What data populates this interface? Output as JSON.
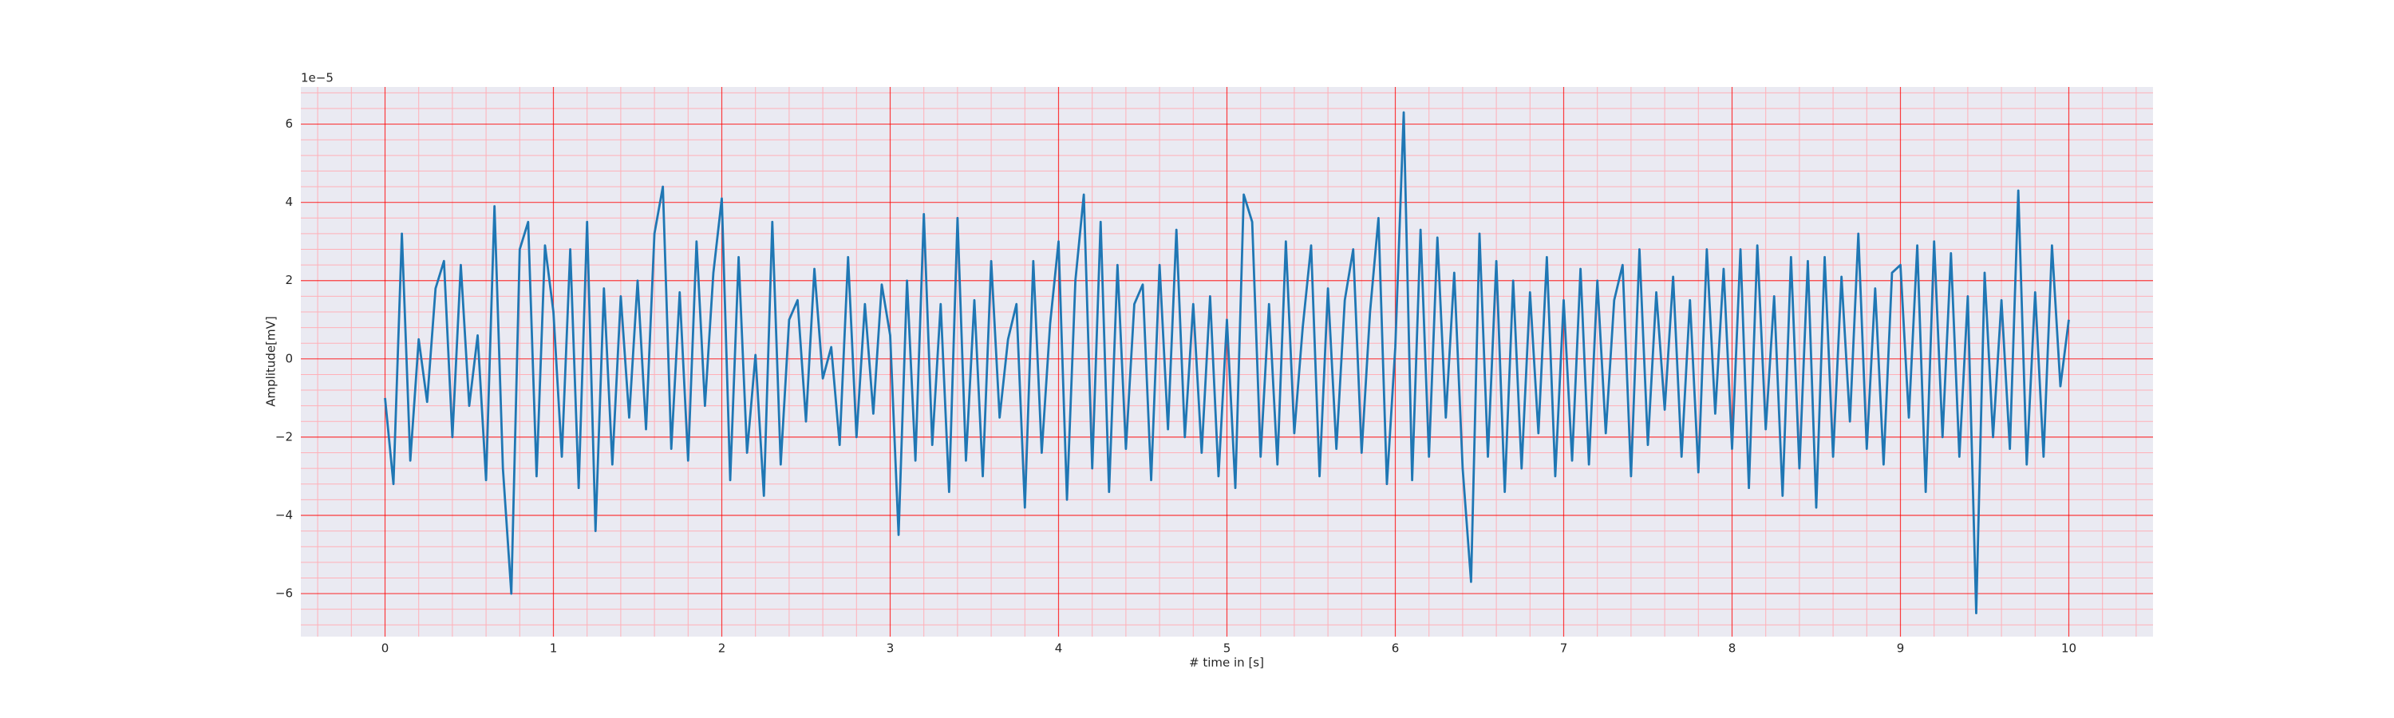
{
  "chart_data": {
    "type": "line",
    "xlabel": "# time in [s]",
    "ylabel": "Amplitude[mV]",
    "offset_text": "1e−5",
    "color": "#1f77b4",
    "grid": true,
    "grid_color": "#ff0000",
    "minor_grid_color": "#ffb0b8",
    "facecolor": "#eaeaf2",
    "xlim": [
      -0.5,
      10.5
    ],
    "ylim": [
      -7.1,
      6.95
    ],
    "xticks": [
      0,
      1,
      2,
      3,
      4,
      5,
      6,
      7,
      8,
      9,
      10
    ],
    "yticks": [
      {
        "value": -6,
        "label": "−6"
      },
      {
        "value": -4,
        "label": "−4"
      },
      {
        "value": -2,
        "label": "−2"
      },
      0,
      2,
      4,
      6
    ],
    "xminorticks": [
      -0.4,
      -0.2,
      0.2,
      0.4,
      0.6,
      0.8,
      1.2,
      1.4,
      1.6,
      1.8,
      2.2,
      2.4,
      2.6,
      2.8,
      3.2,
      3.4,
      3.6,
      3.8,
      4.2,
      4.4,
      4.6,
      4.8,
      5.2,
      5.4,
      5.6,
      5.8,
      6.2,
      6.4,
      6.6,
      6.8,
      7.2,
      7.4,
      7.6,
      7.8,
      8.2,
      8.4,
      8.6,
      8.8,
      9.2,
      9.4,
      9.6,
      9.8,
      10.2,
      10.4
    ],
    "yminorticks": [
      -6.8,
      -6.4,
      -5.6,
      -5.2,
      -4.8,
      -4.4,
      -3.6,
      -3.2,
      -2.8,
      -2.4,
      -1.6,
      -1.2,
      -0.8,
      -0.4,
      0.4,
      0.8,
      1.2,
      1.6,
      2.4,
      2.8,
      3.2,
      3.6,
      4.4,
      4.8,
      5.2,
      5.6,
      6.4,
      6.8
    ],
    "x": [
      0,
      0.05,
      0.1,
      0.15,
      0.2,
      0.25,
      0.3,
      0.35,
      0.4,
      0.45,
      0.5,
      0.55,
      0.6,
      0.65,
      0.7,
      0.75,
      0.8,
      0.85,
      0.9,
      0.95,
      1,
      1.05,
      1.1,
      1.15,
      1.2,
      1.25,
      1.3,
      1.35,
      1.4,
      1.45,
      1.5,
      1.55,
      1.6,
      1.65,
      1.7,
      1.75,
      1.8,
      1.85,
      1.9,
      1.95,
      2,
      2.05,
      2.1,
      2.15,
      2.2,
      2.25,
      2.3,
      2.35,
      2.4,
      2.45,
      2.5,
      2.55,
      2.6,
      2.65,
      2.7,
      2.75,
      2.8,
      2.85,
      2.9,
      2.95,
      3,
      3.05,
      3.1,
      3.15,
      3.2,
      3.25,
      3.3,
      3.35,
      3.4,
      3.45,
      3.5,
      3.55,
      3.6,
      3.65,
      3.7,
      3.75,
      3.8,
      3.85,
      3.9,
      3.95,
      4,
      4.05,
      4.1,
      4.15,
      4.2,
      4.25,
      4.3,
      4.35,
      4.4,
      4.45,
      4.5,
      4.55,
      4.6,
      4.65,
      4.7,
      4.75,
      4.8,
      4.85,
      4.9,
      4.95,
      5,
      5.05,
      5.1,
      5.15,
      5.2,
      5.25,
      5.3,
      5.35,
      5.4,
      5.45,
      5.5,
      5.55,
      5.6,
      5.65,
      5.7,
      5.75,
      5.8,
      5.85,
      5.9,
      5.95,
      6,
      6.05,
      6.1,
      6.15,
      6.2,
      6.25,
      6.3,
      6.35,
      6.4,
      6.45,
      6.5,
      6.55,
      6.6,
      6.65,
      6.7,
      6.75,
      6.8,
      6.85,
      6.9,
      6.95,
      7,
      7.05,
      7.1,
      7.15,
      7.2,
      7.25,
      7.3,
      7.35,
      7.4,
      7.45,
      7.5,
      7.55,
      7.6,
      7.65,
      7.7,
      7.75,
      7.8,
      7.85,
      7.9,
      7.95,
      8,
      8.05,
      8.1,
      8.15,
      8.2,
      8.25,
      8.3,
      8.35,
      8.4,
      8.45,
      8.5,
      8.55,
      8.6,
      8.65,
      8.7,
      8.75,
      8.8,
      8.85,
      8.9,
      8.95,
      9,
      9.05,
      9.1,
      9.15,
      9.2,
      9.25,
      9.3,
      9.35,
      9.4,
      9.45,
      9.5,
      9.55,
      9.6,
      9.65,
      9.7,
      9.75,
      9.8,
      9.85,
      9.9,
      9.95,
      10
    ],
    "values": [
      -1.0,
      -3.2,
      3.2,
      -2.6,
      0.5,
      -1.1,
      1.8,
      2.5,
      -2.0,
      2.4,
      -1.2,
      0.6,
      -3.1,
      3.9,
      -2.8,
      -6.0,
      2.8,
      3.5,
      -3.0,
      2.9,
      1.2,
      -2.5,
      2.8,
      -3.3,
      3.5,
      -4.4,
      1.8,
      -2.7,
      1.6,
      -1.5,
      2.0,
      -1.8,
      3.2,
      4.4,
      -2.3,
      1.7,
      -2.6,
      3.0,
      -1.2,
      2.2,
      4.1,
      -3.1,
      2.6,
      -2.4,
      0.1,
      -3.5,
      3.5,
      -2.7,
      1.0,
      1.5,
      -1.6,
      2.3,
      -0.5,
      0.3,
      -2.2,
      2.6,
      -2.0,
      1.4,
      -1.4,
      1.9,
      0.6,
      -4.5,
      2.0,
      -2.6,
      3.7,
      -2.2,
      1.4,
      -3.4,
      3.6,
      -2.6,
      1.5,
      -3.0,
      2.5,
      -1.5,
      0.5,
      1.4,
      -3.8,
      2.5,
      -2.4,
      0.9,
      3.0,
      -3.6,
      2.0,
      4.2,
      -2.8,
      3.5,
      -3.4,
      2.4,
      -2.3,
      1.4,
      1.9,
      -3.1,
      2.4,
      -1.8,
      3.3,
      -2.0,
      1.4,
      -2.4,
      1.6,
      -3.0,
      1.0,
      -3.3,
      4.2,
      3.5,
      -2.5,
      1.4,
      -2.7,
      3.0,
      -1.9,
      0.8,
      2.9,
      -3.0,
      1.8,
      -2.3,
      1.5,
      2.8,
      -2.4,
      1.2,
      3.6,
      -3.2,
      0.3,
      6.3,
      -3.1,
      3.3,
      -2.5,
      3.1,
      -1.5,
      2.2,
      -2.8,
      -5.7,
      3.2,
      -2.5,
      2.5,
      -3.4,
      2.0,
      -2.8,
      1.7,
      -1.9,
      2.6,
      -3.0,
      1.5,
      -2.6,
      2.3,
      -2.7,
      2.0,
      -1.9,
      1.5,
      2.4,
      -3.0,
      2.8,
      -2.2,
      1.7,
      -1.3,
      2.1,
      -2.5,
      1.5,
      -2.9,
      2.8,
      -1.4,
      2.3,
      -2.3,
      2.8,
      -3.3,
      2.9,
      -1.8,
      1.6,
      -3.5,
      2.6,
      -2.8,
      2.5,
      -3.8,
      2.6,
      -2.5,
      2.1,
      -1.6,
      3.2,
      -2.3,
      1.8,
      -2.7,
      2.2,
      2.4,
      -1.5,
      2.9,
      -3.4,
      3.0,
      -2.0,
      2.7,
      -2.5,
      1.6,
      -6.5,
      2.2,
      -2.0,
      1.5,
      -2.3,
      4.3,
      -2.7,
      1.7,
      -2.5,
      2.9,
      -0.7,
      1.0
    ]
  }
}
